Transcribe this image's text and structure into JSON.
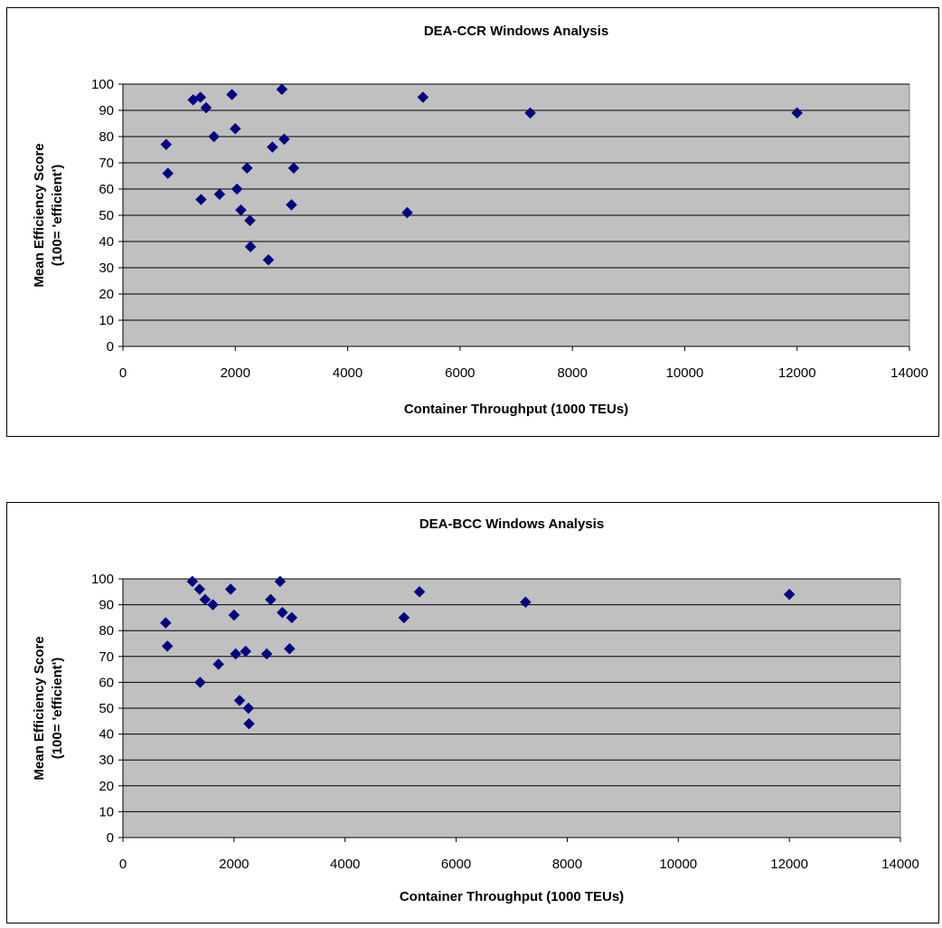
{
  "chart_data": [
    {
      "type": "scatter",
      "title": "DEA-CCR Windows Analysis",
      "xlabel": "Container Throughput (1000 TEUs)",
      "ylabel_line1": "Mean Efficiency Score",
      "ylabel_line2": "(100= 'efficient')",
      "xlim": [
        0,
        14000
      ],
      "ylim": [
        0,
        100
      ],
      "xticks": [
        0,
        2000,
        4000,
        6000,
        8000,
        10000,
        12000,
        14000
      ],
      "yticks": [
        0,
        10,
        20,
        30,
        40,
        50,
        60,
        70,
        80,
        90,
        100
      ],
      "grid": "horizontal",
      "plot_background": "#c0c0c0",
      "marker_color": "#000080",
      "points": [
        {
          "x": 770,
          "y": 77
        },
        {
          "x": 800,
          "y": 66
        },
        {
          "x": 1250,
          "y": 94
        },
        {
          "x": 1380,
          "y": 95
        },
        {
          "x": 1390,
          "y": 56
        },
        {
          "x": 1480,
          "y": 91
        },
        {
          "x": 1620,
          "y": 80
        },
        {
          "x": 1720,
          "y": 58
        },
        {
          "x": 1940,
          "y": 96
        },
        {
          "x": 2000,
          "y": 83
        },
        {
          "x": 2030,
          "y": 60
        },
        {
          "x": 2100,
          "y": 52
        },
        {
          "x": 2210,
          "y": 68
        },
        {
          "x": 2260,
          "y": 48
        },
        {
          "x": 2270,
          "y": 38
        },
        {
          "x": 2590,
          "y": 33
        },
        {
          "x": 2660,
          "y": 76
        },
        {
          "x": 2830,
          "y": 98
        },
        {
          "x": 2870,
          "y": 79
        },
        {
          "x": 3000,
          "y": 54
        },
        {
          "x": 3040,
          "y": 68
        },
        {
          "x": 5060,
          "y": 51
        },
        {
          "x": 5340,
          "y": 95
        },
        {
          "x": 7250,
          "y": 89
        },
        {
          "x": 12000,
          "y": 89
        }
      ]
    },
    {
      "type": "scatter",
      "title": "DEA-BCC Windows Analysis",
      "xlabel": "Container Throughput (1000 TEUs)",
      "ylabel_line1": "Mean Efficiency Score",
      "ylabel_line2": "(100= 'efficient')",
      "xlim": [
        0,
        14000
      ],
      "ylim": [
        0,
        100
      ],
      "xticks": [
        0,
        2000,
        4000,
        6000,
        8000,
        10000,
        12000,
        14000
      ],
      "yticks": [
        0,
        10,
        20,
        30,
        40,
        50,
        60,
        70,
        80,
        90,
        100
      ],
      "grid": "horizontal",
      "plot_background": "#c0c0c0",
      "marker_color": "#000080",
      "points": [
        {
          "x": 770,
          "y": 83
        },
        {
          "x": 800,
          "y": 74
        },
        {
          "x": 1250,
          "y": 99
        },
        {
          "x": 1380,
          "y": 96
        },
        {
          "x": 1390,
          "y": 60
        },
        {
          "x": 1480,
          "y": 92
        },
        {
          "x": 1620,
          "y": 90
        },
        {
          "x": 1720,
          "y": 67
        },
        {
          "x": 1940,
          "y": 96
        },
        {
          "x": 2000,
          "y": 86
        },
        {
          "x": 2030,
          "y": 71
        },
        {
          "x": 2100,
          "y": 53
        },
        {
          "x": 2210,
          "y": 72
        },
        {
          "x": 2260,
          "y": 50
        },
        {
          "x": 2270,
          "y": 44
        },
        {
          "x": 2590,
          "y": 71
        },
        {
          "x": 2660,
          "y": 92
        },
        {
          "x": 2830,
          "y": 99
        },
        {
          "x": 2870,
          "y": 87
        },
        {
          "x": 3000,
          "y": 73
        },
        {
          "x": 3040,
          "y": 85
        },
        {
          "x": 5060,
          "y": 85
        },
        {
          "x": 5340,
          "y": 95
        },
        {
          "x": 7250,
          "y": 91
        },
        {
          "x": 12000,
          "y": 94
        }
      ]
    }
  ]
}
